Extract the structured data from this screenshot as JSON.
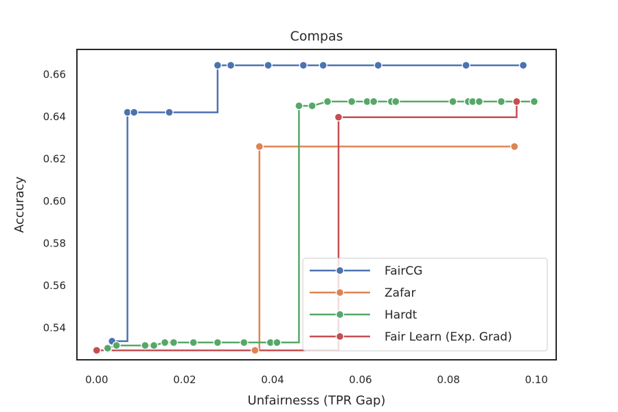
{
  "chart_data": {
    "type": "line",
    "title": "Compas",
    "xlabel": "Unfairnesss (TPR Gap)",
    "ylabel": "Accuracy",
    "xlim": [
      -0.0045,
      0.1045
    ],
    "ylim": [
      0.5245,
      0.6715
    ],
    "xticks": [
      0.0,
      0.02,
      0.04,
      0.06,
      0.08,
      0.1
    ],
    "xtick_labels": [
      "0.00",
      "0.02",
      "0.04",
      "0.06",
      "0.08",
      "0.10"
    ],
    "yticks": [
      0.54,
      0.56,
      0.58,
      0.6,
      0.62,
      0.64,
      0.66
    ],
    "ytick_labels": [
      "0.54",
      "0.56",
      "0.58",
      "0.60",
      "0.62",
      "0.64",
      "0.66"
    ],
    "grid": false,
    "legend_position": "lower right",
    "series": [
      {
        "name": "FairCG",
        "color": "#4c72b0",
        "step": true,
        "points": [
          [
            0.0025,
            0.5295
          ],
          [
            0.0035,
            0.5333
          ],
          [
            0.007,
            0.5333
          ],
          [
            0.007,
            0.6417
          ],
          [
            0.0085,
            0.6417
          ],
          [
            0.0165,
            0.6417
          ],
          [
            0.0275,
            0.6417
          ],
          [
            0.0275,
            0.664
          ],
          [
            0.0305,
            0.664
          ],
          [
            0.039,
            0.664
          ],
          [
            0.047,
            0.664
          ],
          [
            0.0515,
            0.664
          ],
          [
            0.064,
            0.664
          ],
          [
            0.084,
            0.664
          ],
          [
            0.097,
            0.664
          ]
        ],
        "markers": [
          [
            0.0025,
            0.5295
          ],
          [
            0.0035,
            0.5333
          ],
          [
            0.007,
            0.6417
          ],
          [
            0.0085,
            0.6417
          ],
          [
            0.0165,
            0.6417
          ],
          [
            0.0275,
            0.664
          ],
          [
            0.0305,
            0.664
          ],
          [
            0.039,
            0.664
          ],
          [
            0.047,
            0.664
          ],
          [
            0.0515,
            0.664
          ],
          [
            0.064,
            0.664
          ],
          [
            0.084,
            0.664
          ],
          [
            0.097,
            0.664
          ]
        ]
      },
      {
        "name": "Zafar",
        "color": "#dd8452",
        "step": true,
        "points": [
          [
            0.0,
            0.529
          ],
          [
            0.036,
            0.529
          ],
          [
            0.037,
            0.529
          ],
          [
            0.037,
            0.6255
          ],
          [
            0.095,
            0.6255
          ]
        ],
        "markers": [
          [
            0.036,
            0.529
          ],
          [
            0.037,
            0.6255
          ],
          [
            0.095,
            0.6255
          ]
        ]
      },
      {
        "name": "Hardt",
        "color": "#55a868",
        "step": true,
        "points": [
          [
            0.0025,
            0.53
          ],
          [
            0.0045,
            0.5313
          ],
          [
            0.0065,
            0.5313
          ],
          [
            0.011,
            0.5313
          ],
          [
            0.013,
            0.5313
          ],
          [
            0.0155,
            0.5327
          ],
          [
            0.0175,
            0.5327
          ],
          [
            0.022,
            0.5327
          ],
          [
            0.0275,
            0.5327
          ],
          [
            0.0335,
            0.5327
          ],
          [
            0.0395,
            0.5327
          ],
          [
            0.041,
            0.5327
          ],
          [
            0.046,
            0.5327
          ],
          [
            0.046,
            0.6448
          ],
          [
            0.049,
            0.6448
          ],
          [
            0.0525,
            0.6468
          ],
          [
            0.058,
            0.6468
          ],
          [
            0.0615,
            0.6468
          ],
          [
            0.063,
            0.6468
          ],
          [
            0.067,
            0.6468
          ],
          [
            0.068,
            0.6468
          ],
          [
            0.081,
            0.6468
          ],
          [
            0.0845,
            0.6468
          ],
          [
            0.0855,
            0.6468
          ],
          [
            0.087,
            0.6468
          ],
          [
            0.092,
            0.6468
          ],
          [
            0.0995,
            0.6468
          ]
        ],
        "markers": [
          [
            0.0025,
            0.53
          ],
          [
            0.0045,
            0.5313
          ],
          [
            0.011,
            0.5313
          ],
          [
            0.013,
            0.5313
          ],
          [
            0.0155,
            0.5327
          ],
          [
            0.0175,
            0.5327
          ],
          [
            0.022,
            0.5327
          ],
          [
            0.0275,
            0.5327
          ],
          [
            0.0335,
            0.5327
          ],
          [
            0.0395,
            0.5327
          ],
          [
            0.041,
            0.5327
          ],
          [
            0.046,
            0.6448
          ],
          [
            0.049,
            0.6448
          ],
          [
            0.0525,
            0.6468
          ],
          [
            0.058,
            0.6468
          ],
          [
            0.0615,
            0.6468
          ],
          [
            0.063,
            0.6468
          ],
          [
            0.067,
            0.6468
          ],
          [
            0.068,
            0.6468
          ],
          [
            0.081,
            0.6468
          ],
          [
            0.0845,
            0.6468
          ],
          [
            0.0855,
            0.6468
          ],
          [
            0.087,
            0.6468
          ],
          [
            0.092,
            0.6468
          ],
          [
            0.0995,
            0.6468
          ]
        ]
      },
      {
        "name": "Fair Learn (Exp. Grad)",
        "color": "#c44e52",
        "step": true,
        "points": [
          [
            0.0,
            0.529
          ],
          [
            0.0535,
            0.529
          ],
          [
            0.055,
            0.529
          ],
          [
            0.055,
            0.6394
          ],
          [
            0.0955,
            0.6394
          ],
          [
            0.0955,
            0.6468
          ]
        ],
        "markers": [
          [
            0.0,
            0.529
          ],
          [
            0.055,
            0.6394
          ],
          [
            0.0955,
            0.6468
          ]
        ]
      }
    ]
  }
}
